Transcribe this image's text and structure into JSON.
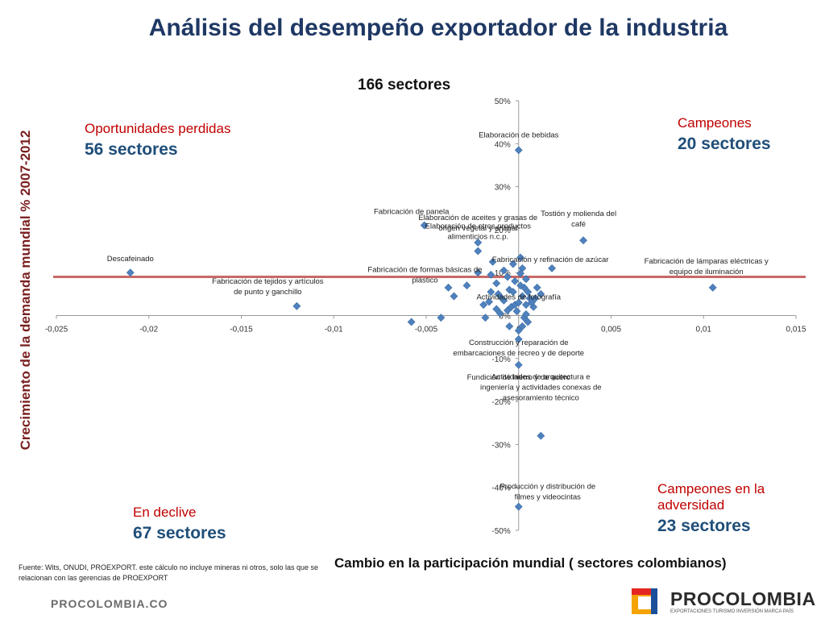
{
  "title": "Análisis del desempeño exportador de la industria",
  "subtitle": "166 sectores",
  "quadrants": {
    "oportunidades": {
      "label": "Oportunidades perdidas",
      "count": "56 sectores"
    },
    "campeones": {
      "label": "Campeones",
      "count": "20 sectores"
    },
    "declive": {
      "label": "En declive",
      "count": "67 sectores"
    },
    "adversidad": {
      "label": "Campeones en la adversidad",
      "count": "23 sectores"
    }
  },
  "source": "Fuente: Wits, ONUDI, PROEXPORT. este cálculo no incluye mineras ni otros, solo las que se relacionan con las gerencias de PROEXPORT",
  "footer": {
    "site": "PROCOLOMBIA.CO",
    "brand": "PROCOLOMBIA",
    "tagline": "EXPORTACIONES TURISMO INVERSIÓN MARCA PAÍS"
  },
  "colors": {
    "title": "#1f3864",
    "point": "#4f81bd",
    "refline": "#c0504d",
    "quad_label": "#c00000",
    "quad_count": "#1f4e79"
  },
  "chart_data": {
    "type": "scatter",
    "xlabel": "Cambio en la participación mundial ( sectores colombianos)",
    "ylabel": "Crecimiento de la demanda mundial % 2007-2012",
    "xlim": [
      -0.025,
      0.015
    ],
    "ylim": [
      -50,
      50
    ],
    "x_ticks": [
      "-0,025",
      "-0,02",
      "-0,015",
      "-0,01",
      "-0,005",
      "0",
      "0,005",
      "0,01",
      "0,015"
    ],
    "y_ticks": [
      "50%",
      "40%",
      "30%",
      "20%",
      "10%",
      "0%",
      "-10%",
      "-20%",
      "-30%",
      "-40%",
      "-50%"
    ],
    "reference_line_y": 9,
    "grid": false,
    "legend": "none",
    "labeled_points": [
      {
        "name": "Elaboración de bebidas",
        "x": 0.0,
        "y": 38.5
      },
      {
        "name": "Fabricación de panela",
        "x": -0.0051,
        "y": 21.0
      },
      {
        "name": "Elaboración de aceites y grasas de origen vegetal y animal",
        "x": -0.0022,
        "y": 17.0
      },
      {
        "name": "Tostión y molienda del café",
        "x": 0.0035,
        "y": 17.5
      },
      {
        "name": "Elaboración de otros productos alimenticios n.c.p.",
        "x": -0.0022,
        "y": 15.0
      },
      {
        "name": "Fabricación y refinación de azúcar",
        "x": 0.0018,
        "y": 11.0
      },
      {
        "name": "Descafeinado",
        "x": -0.021,
        "y": 10.0
      },
      {
        "name": "Fabricación de lámparas eléctricas y equipo de iluminación",
        "x": 0.0105,
        "y": 6.5
      },
      {
        "name": "Fabricación de tejidos y artículos de punto y ganchillo",
        "x": -0.012,
        "y": 2.2
      },
      {
        "name": "Fabricación de formas básicas de plástico",
        "x": -0.0035,
        "y": 4.5
      },
      {
        "name": "Actividades de fotografía",
        "x": 0.0,
        "y": 3.0
      },
      {
        "name": "Construcción y reparación de embarcaciones de recreo y de deporte",
        "x": 0.0,
        "y": -3.5
      },
      {
        "name": "Fundición de hierro y de acero",
        "x": 0.0,
        "y": -11.5
      },
      {
        "name": "Actividades de arquitectura e ingeniería y actividades conexas de asesoramiento técnico",
        "x": 0.0012,
        "y": -28.0
      },
      {
        "name": "Producción y distribución de filmes y videocintas",
        "x": 0.0,
        "y": -44.5
      }
    ],
    "other_points": [
      [
        -0.0058,
        -1.5
      ],
      [
        -0.0042,
        -0.5
      ],
      [
        -0.0018,
        -0.5
      ],
      [
        0.0005,
        -1.5
      ],
      [
        -0.0012,
        1.5
      ],
      [
        -0.0004,
        2.0
      ],
      [
        0.0004,
        2.5
      ],
      [
        0.0008,
        2.0
      ],
      [
        -0.0008,
        3.5
      ],
      [
        0.0002,
        4.5
      ],
      [
        0.0006,
        4.0
      ],
      [
        0.0012,
        5.0
      ],
      [
        -0.0015,
        5.5
      ],
      [
        -0.0005,
        6.0
      ],
      [
        0.0003,
        6.5
      ],
      [
        0.001,
        6.5
      ],
      [
        -0.0028,
        7.0
      ],
      [
        -0.0012,
        7.5
      ],
      [
        -0.0002,
        8.0
      ],
      [
        0.0004,
        8.5
      ],
      [
        -0.0022,
        10.0
      ],
      [
        -0.0015,
        9.5
      ],
      [
        -0.0008,
        10.5
      ],
      [
        0.0002,
        11.0
      ],
      [
        -0.0003,
        12.0
      ],
      [
        -0.0014,
        12.5
      ],
      [
        0.0001,
        13.5
      ],
      [
        -0.0006,
        9.0
      ],
      [
        0.0001,
        7.0
      ],
      [
        -0.0003,
        5.5
      ],
      [
        0.0005,
        5.5
      ],
      [
        -0.0009,
        4.0
      ],
      [
        0.0,
        -5.5
      ],
      [
        -0.0005,
        -2.5
      ],
      [
        0.0003,
        -0.5
      ],
      [
        -0.001,
        0.5
      ],
      [
        -0.0038,
        6.5
      ],
      [
        -0.0019,
        2.5
      ],
      [
        0.0007,
        3.0
      ],
      [
        -0.0001,
        1.0
      ],
      [
        0.0002,
        -2.5
      ],
      [
        -0.0002,
        2.5
      ],
      [
        0.0009,
        4.0
      ],
      [
        -0.0006,
        1.2
      ],
      [
        0.0004,
        0.3
      ],
      [
        -0.0011,
        5.0
      ],
      [
        0.0001,
        9.8
      ],
      [
        -0.0016,
        3.2
      ]
    ]
  }
}
